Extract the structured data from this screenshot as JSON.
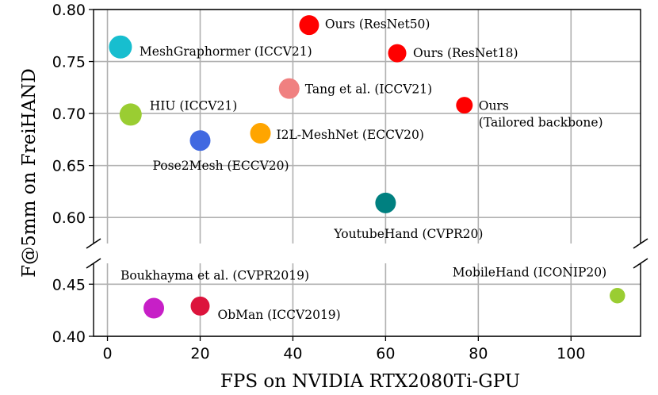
{
  "chart_data": {
    "type": "scatter",
    "xlabel": "FPS on NVIDIA RTX2080Ti-GPU",
    "ylabel": "F@5mm on FreiHAND",
    "xlim": [
      -3,
      115
    ],
    "grid": true,
    "broken_y_axis": true,
    "panels": [
      {
        "name": "upper",
        "ylim": [
          0.575,
          0.8
        ],
        "yticks": [
          "0.60",
          "0.65",
          "0.70",
          "0.75",
          "0.80"
        ]
      },
      {
        "name": "lower",
        "ylim": [
          0.4,
          0.47
        ],
        "yticks": [
          "0.40",
          "0.45"
        ]
      }
    ],
    "xticks": [
      "0",
      "20",
      "40",
      "60",
      "80",
      "100"
    ],
    "points": [
      {
        "label": "Ours (ResNet50)",
        "x": 43.5,
        "y": 0.785,
        "panel": "upper",
        "color": "#ff0000",
        "size": 1.0,
        "label_lines": [
          "Ours (ResNet50)"
        ]
      },
      {
        "label": "Ours (ResNet18)",
        "x": 62.5,
        "y": 0.758,
        "panel": "upper",
        "color": "#ff0000",
        "size": 0.8,
        "label_lines": [
          "Ours (ResNet18)"
        ]
      },
      {
        "label": "Ours (Tailored backbone)",
        "x": 77,
        "y": 0.708,
        "panel": "upper",
        "color": "#ff0000",
        "size": 0.6,
        "label_lines": [
          "Ours",
          "(Tailored backbone)"
        ]
      },
      {
        "label": "MeshGraphormer (ICCV21)",
        "x": 2.8,
        "y": 0.764,
        "panel": "upper",
        "color": "#17becf",
        "size": 1.4,
        "label_lines": [
          "MeshGraphormer (ICCV21)"
        ]
      },
      {
        "label": "Tang et al. (ICCV21)",
        "x": 39.2,
        "y": 0.724,
        "panel": "upper",
        "color": "#f08080",
        "size": 1.1,
        "label_lines": [
          "Tang et al. (ICCV21)"
        ]
      },
      {
        "label": "HIU (ICCV21)",
        "x": 5,
        "y": 0.699,
        "panel": "upper",
        "color": "#9acd32",
        "size": 1.3,
        "label_lines": [
          "HIU (ICCV21)"
        ]
      },
      {
        "label": "I2L-MeshNet (ECCV20)",
        "x": 33,
        "y": 0.681,
        "panel": "upper",
        "color": "#ffa500",
        "size": 1.1,
        "label_lines": [
          "I2L-MeshNet (ECCV20)"
        ]
      },
      {
        "label": "Pose2Mesh (ECCV20)",
        "x": 20,
        "y": 0.674,
        "panel": "upper",
        "color": "#4169e1",
        "size": 1.1,
        "label_lines": [
          "Pose2Mesh (ECCV20)"
        ]
      },
      {
        "label": "YoutubeHand (CVPR20)",
        "x": 60,
        "y": 0.614,
        "panel": "upper",
        "color": "#008080",
        "size": 1.1,
        "label_lines": [
          "YoutubeHand (CVPR20)"
        ]
      },
      {
        "label": "Boukhayma et al. (CVPR2019)",
        "x": 10,
        "y": 0.427,
        "panel": "lower",
        "color": "#c71fc7",
        "size": 1.1,
        "label_lines": [
          "Boukhayma et al. (CVPR2019)"
        ]
      },
      {
        "label": "ObMan (ICCV2019)",
        "x": 20,
        "y": 0.429,
        "panel": "lower",
        "color": "#dc143c",
        "size": 0.9,
        "label_lines": [
          "ObMan (ICCV2019)"
        ]
      },
      {
        "label": "MobileHand (ICONIP20)",
        "x": 110,
        "y": 0.439,
        "panel": "lower",
        "color": "#9acd32",
        "size": 0.45,
        "label_lines": [
          "MobileHand (ICONIP20)"
        ]
      }
    ]
  }
}
